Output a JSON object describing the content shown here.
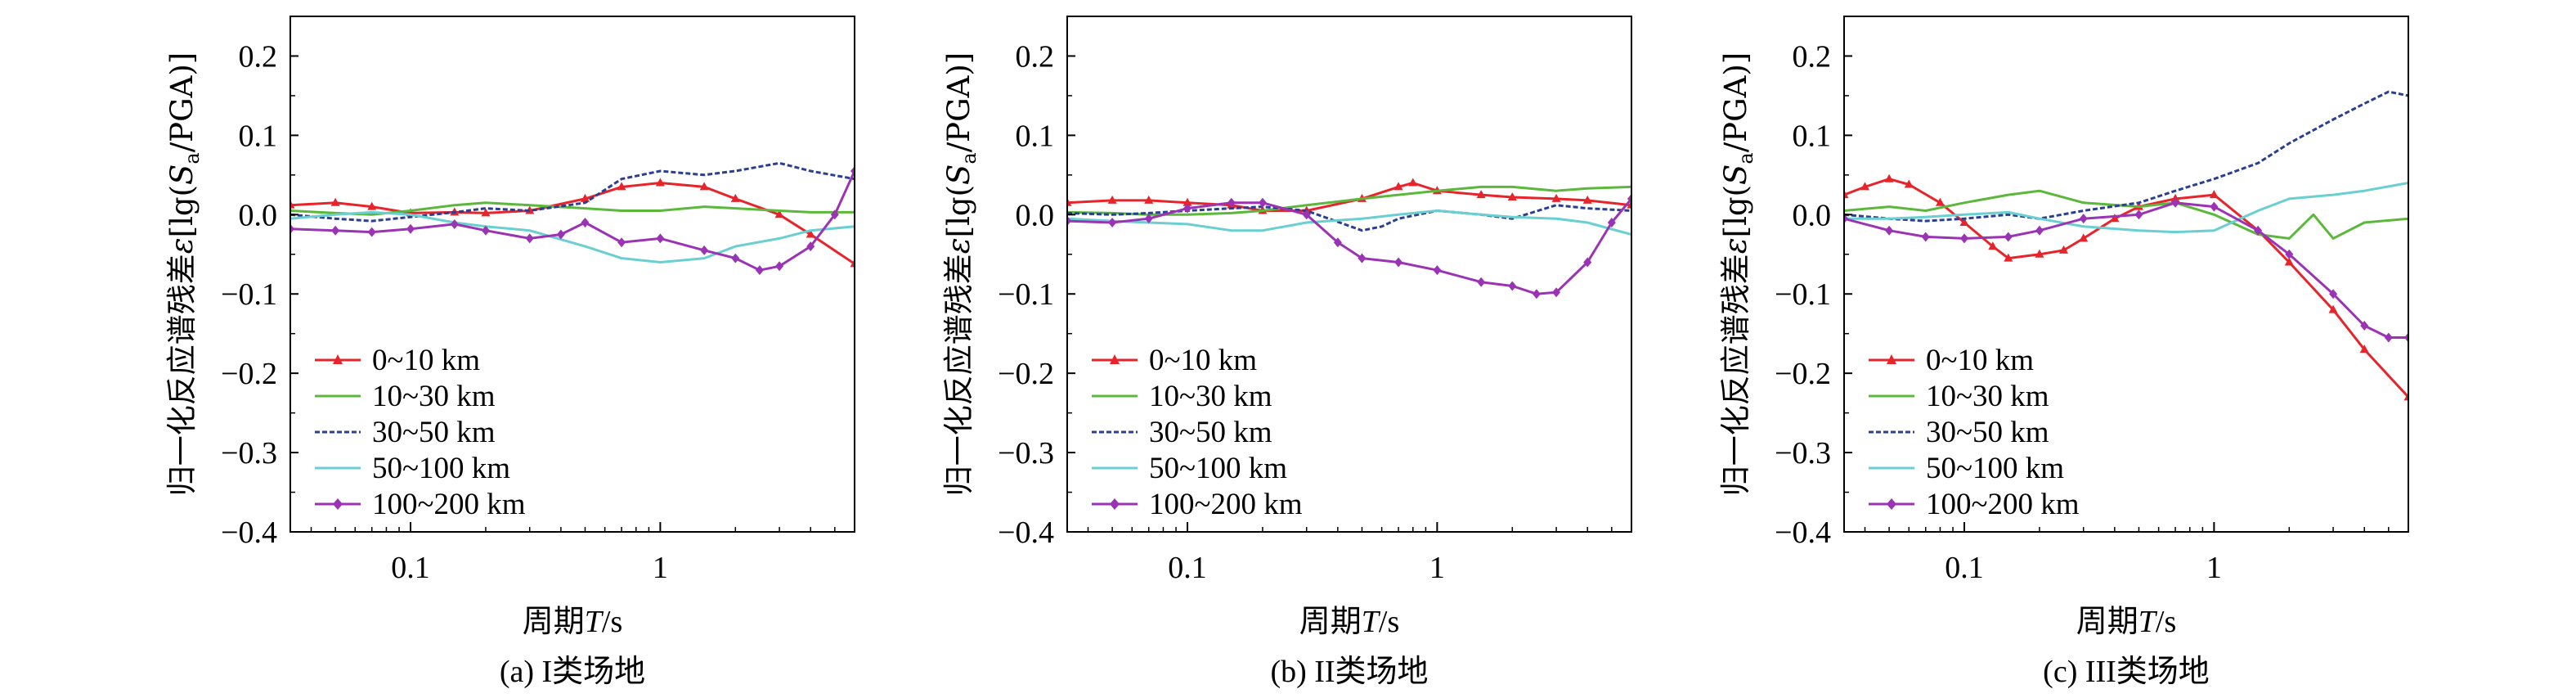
{
  "figure": {
    "x_tick_labels": [
      "0.1",
      "1"
    ],
    "y_tick_labels": [
      "0.2",
      "0.1",
      "0.0",
      "−0.1",
      "−0.2",
      "−0.3",
      "−0.4"
    ],
    "xlabel": "周期T/s",
    "ylabel": "归一化反应谱残差ε[lg(Sa/PGA)]",
    "legend_labels": [
      "0~10 km",
      "10~30 km",
      "30~50 km",
      "50~100 km",
      "100~200 km"
    ],
    "colors": [
      "#e8242b",
      "#5cb83c",
      "#2a3f93",
      "#69cfd0",
      "#9b34b4"
    ]
  },
  "chart_data": [
    {
      "type": "line",
      "title": "(a) I类场地",
      "xlabel": "周期T/s",
      "ylabel": "归一化反应谱残差ε[lg(Sa/PGA)]",
      "x_scale": "log",
      "xlim": [
        0.033,
        6
      ],
      "ylim": [
        -0.4,
        0.25
      ],
      "legend_position": "lower-left",
      "series": [
        {
          "name": "0~10 km",
          "color": "#e8242b",
          "marker": "triangle",
          "points": [
            [
              0.033,
              0.012
            ],
            [
              0.05,
              0.015
            ],
            [
              0.07,
              0.01
            ],
            [
              0.1,
              0.002
            ],
            [
              0.15,
              0.003
            ],
            [
              0.2,
              0.002
            ],
            [
              0.3,
              0.005
            ],
            [
              0.5,
              0.02
            ],
            [
              0.7,
              0.035
            ],
            [
              1,
              0.04
            ],
            [
              1.5,
              0.035
            ],
            [
              2,
              0.02
            ],
            [
              3,
              0.0
            ],
            [
              4,
              -0.025
            ],
            [
              6,
              -0.062
            ]
          ]
        },
        {
          "name": "10~30 km",
          "color": "#5cb83c",
          "marker": "none",
          "points": [
            [
              0.033,
              0.005
            ],
            [
              0.05,
              0.002
            ],
            [
              0.07,
              0.0
            ],
            [
              0.1,
              0.005
            ],
            [
              0.15,
              0.012
            ],
            [
              0.2,
              0.015
            ],
            [
              0.3,
              0.012
            ],
            [
              0.5,
              0.008
            ],
            [
              0.7,
              0.005
            ],
            [
              1,
              0.005
            ],
            [
              1.5,
              0.01
            ],
            [
              2,
              0.008
            ],
            [
              3,
              0.005
            ],
            [
              4,
              0.003
            ],
            [
              6,
              0.003
            ]
          ]
        },
        {
          "name": "30~50 km",
          "color": "#2a3f93",
          "marker": "none",
          "points": [
            [
              0.033,
              0.0
            ],
            [
              0.05,
              -0.005
            ],
            [
              0.07,
              -0.008
            ],
            [
              0.1,
              -0.003
            ],
            [
              0.15,
              0.003
            ],
            [
              0.2,
              0.008
            ],
            [
              0.3,
              0.005
            ],
            [
              0.5,
              0.015
            ],
            [
              0.7,
              0.045
            ],
            [
              1,
              0.055
            ],
            [
              1.5,
              0.05
            ],
            [
              2,
              0.055
            ],
            [
              3,
              0.065
            ],
            [
              4,
              0.055
            ],
            [
              6,
              0.045
            ]
          ]
        },
        {
          "name": "50~100 km",
          "color": "#69cfd0",
          "marker": "none",
          "points": [
            [
              0.033,
              -0.005
            ],
            [
              0.05,
              0.0
            ],
            [
              0.07,
              0.003
            ],
            [
              0.1,
              0.0
            ],
            [
              0.15,
              -0.01
            ],
            [
              0.2,
              -0.015
            ],
            [
              0.3,
              -0.02
            ],
            [
              0.5,
              -0.04
            ],
            [
              0.7,
              -0.055
            ],
            [
              1,
              -0.06
            ],
            [
              1.5,
              -0.055
            ],
            [
              2,
              -0.04
            ],
            [
              3,
              -0.03
            ],
            [
              4,
              -0.02
            ],
            [
              6,
              -0.015
            ]
          ]
        },
        {
          "name": "100~200 km",
          "color": "#9b34b4",
          "marker": "diamond",
          "points": [
            [
              0.033,
              -0.018
            ],
            [
              0.05,
              -0.02
            ],
            [
              0.07,
              -0.022
            ],
            [
              0.1,
              -0.018
            ],
            [
              0.15,
              -0.012
            ],
            [
              0.2,
              -0.02
            ],
            [
              0.3,
              -0.03
            ],
            [
              0.4,
              -0.025
            ],
            [
              0.5,
              -0.01
            ],
            [
              0.7,
              -0.035
            ],
            [
              1,
              -0.03
            ],
            [
              1.5,
              -0.045
            ],
            [
              2,
              -0.055
            ],
            [
              2.5,
              -0.07
            ],
            [
              3,
              -0.065
            ],
            [
              4,
              -0.04
            ],
            [
              5,
              0.0
            ],
            [
              6,
              0.055
            ]
          ]
        }
      ]
    },
    {
      "type": "line",
      "title": "(b) II类场地",
      "xlabel": "周期T/s",
      "ylabel": "归一化反应谱残差ε[lg(Sa/PGA)]",
      "x_scale": "log",
      "xlim": [
        0.033,
        6
      ],
      "ylim": [
        -0.4,
        0.25
      ],
      "legend_position": "lower-left",
      "series": [
        {
          "name": "0~10 km",
          "color": "#e8242b",
          "marker": "triangle",
          "points": [
            [
              0.033,
              0.015
            ],
            [
              0.05,
              0.018
            ],
            [
              0.07,
              0.018
            ],
            [
              0.1,
              0.015
            ],
            [
              0.15,
              0.012
            ],
            [
              0.2,
              0.005
            ],
            [
              0.3,
              0.005
            ],
            [
              0.5,
              0.02
            ],
            [
              0.7,
              0.035
            ],
            [
              0.8,
              0.04
            ],
            [
              1,
              0.03
            ],
            [
              1.5,
              0.025
            ],
            [
              2,
              0.022
            ],
            [
              3,
              0.02
            ],
            [
              4,
              0.018
            ],
            [
              6,
              0.012
            ]
          ]
        },
        {
          "name": "10~30 km",
          "color": "#5cb83c",
          "marker": "none",
          "points": [
            [
              0.033,
              0.003
            ],
            [
              0.05,
              0.002
            ],
            [
              0.07,
              0.0
            ],
            [
              0.1,
              0.0
            ],
            [
              0.15,
              0.002
            ],
            [
              0.2,
              0.005
            ],
            [
              0.3,
              0.012
            ],
            [
              0.5,
              0.02
            ],
            [
              0.7,
              0.025
            ],
            [
              1,
              0.03
            ],
            [
              1.5,
              0.035
            ],
            [
              2,
              0.035
            ],
            [
              3,
              0.03
            ],
            [
              4,
              0.033
            ],
            [
              6,
              0.035
            ]
          ]
        },
        {
          "name": "30~50 km",
          "color": "#2a3f93",
          "marker": "none",
          "points": [
            [
              0.033,
              0.002
            ],
            [
              0.05,
              0.0
            ],
            [
              0.07,
              0.002
            ],
            [
              0.1,
              0.005
            ],
            [
              0.15,
              0.008
            ],
            [
              0.2,
              0.01
            ],
            [
              0.3,
              0.005
            ],
            [
              0.5,
              -0.02
            ],
            [
              0.6,
              -0.015
            ],
            [
              0.7,
              -0.005
            ],
            [
              1,
              0.005
            ],
            [
              1.5,
              0.0
            ],
            [
              2,
              -0.005
            ],
            [
              3,
              0.012
            ],
            [
              4,
              0.008
            ],
            [
              6,
              0.005
            ]
          ]
        },
        {
          "name": "50~100 km",
          "color": "#69cfd0",
          "marker": "none",
          "points": [
            [
              0.033,
              -0.005
            ],
            [
              0.05,
              -0.008
            ],
            [
              0.07,
              -0.01
            ],
            [
              0.1,
              -0.012
            ],
            [
              0.15,
              -0.02
            ],
            [
              0.2,
              -0.02
            ],
            [
              0.3,
              -0.01
            ],
            [
              0.5,
              -0.005
            ],
            [
              0.7,
              0.0
            ],
            [
              1,
              0.005
            ],
            [
              1.5,
              0.0
            ],
            [
              2,
              -0.003
            ],
            [
              3,
              -0.005
            ],
            [
              4,
              -0.01
            ],
            [
              6,
              -0.025
            ]
          ]
        },
        {
          "name": "100~200 km",
          "color": "#9b34b4",
          "marker": "diamond",
          "points": [
            [
              0.033,
              -0.008
            ],
            [
              0.05,
              -0.01
            ],
            [
              0.07,
              -0.005
            ],
            [
              0.1,
              0.008
            ],
            [
              0.15,
              0.015
            ],
            [
              0.2,
              0.015
            ],
            [
              0.3,
              0.0
            ],
            [
              0.4,
              -0.035
            ],
            [
              0.5,
              -0.055
            ],
            [
              0.7,
              -0.06
            ],
            [
              1,
              -0.07
            ],
            [
              1.5,
              -0.085
            ],
            [
              2,
              -0.09
            ],
            [
              2.5,
              -0.1
            ],
            [
              3,
              -0.098
            ],
            [
              4,
              -0.06
            ],
            [
              5,
              -0.01
            ],
            [
              6,
              0.02
            ]
          ]
        }
      ]
    },
    {
      "type": "line",
      "title": "(c) III类场地",
      "xlabel": "周期T/s",
      "ylabel": "归一化反应谱残差ε[lg(Sa/PGA)]",
      "x_scale": "log",
      "xlim": [
        0.033,
        6
      ],
      "ylim": [
        -0.4,
        0.25
      ],
      "legend_position": "lower-left",
      "series": [
        {
          "name": "0~10 km",
          "color": "#e8242b",
          "marker": "triangle",
          "points": [
            [
              0.033,
              0.025
            ],
            [
              0.04,
              0.035
            ],
            [
              0.05,
              0.045
            ],
            [
              0.06,
              0.038
            ],
            [
              0.08,
              0.015
            ],
            [
              0.1,
              -0.01
            ],
            [
              0.13,
              -0.04
            ],
            [
              0.15,
              -0.055
            ],
            [
              0.2,
              -0.05
            ],
            [
              0.25,
              -0.045
            ],
            [
              0.3,
              -0.03
            ],
            [
              0.4,
              -0.005
            ],
            [
              0.5,
              0.01
            ],
            [
              0.7,
              0.02
            ],
            [
              1,
              0.025
            ],
            [
              1.5,
              -0.02
            ],
            [
              2,
              -0.06
            ],
            [
              3,
              -0.12
            ],
            [
              4,
              -0.17
            ],
            [
              6,
              -0.23
            ]
          ]
        },
        {
          "name": "10~30 km",
          "color": "#5cb83c",
          "marker": "none",
          "points": [
            [
              0.033,
              0.005
            ],
            [
              0.05,
              0.01
            ],
            [
              0.07,
              0.005
            ],
            [
              0.1,
              0.015
            ],
            [
              0.15,
              0.025
            ],
            [
              0.2,
              0.03
            ],
            [
              0.3,
              0.015
            ],
            [
              0.5,
              0.01
            ],
            [
              0.7,
              0.015
            ],
            [
              1,
              0.0
            ],
            [
              1.5,
              -0.025
            ],
            [
              2,
              -0.03
            ],
            [
              2.5,
              0.0
            ],
            [
              3,
              -0.03
            ],
            [
              4,
              -0.01
            ],
            [
              6,
              -0.005
            ]
          ]
        },
        {
          "name": "30~50 km",
          "color": "#2a3f93",
          "marker": "none",
          "points": [
            [
              0.033,
              0.0
            ],
            [
              0.05,
              -0.005
            ],
            [
              0.07,
              -0.008
            ],
            [
              0.1,
              -0.005
            ],
            [
              0.15,
              0.0
            ],
            [
              0.2,
              -0.005
            ],
            [
              0.3,
              0.005
            ],
            [
              0.5,
              0.015
            ],
            [
              0.7,
              0.03
            ],
            [
              1,
              0.045
            ],
            [
              1.5,
              0.065
            ],
            [
              2,
              0.09
            ],
            [
              3,
              0.12
            ],
            [
              4,
              0.14
            ],
            [
              5,
              0.155
            ],
            [
              6,
              0.15
            ]
          ]
        },
        {
          "name": "50~100 km",
          "color": "#69cfd0",
          "marker": "none",
          "points": [
            [
              0.033,
              -0.005
            ],
            [
              0.05,
              -0.005
            ],
            [
              0.07,
              -0.003
            ],
            [
              0.1,
              0.0
            ],
            [
              0.15,
              0.003
            ],
            [
              0.2,
              -0.005
            ],
            [
              0.3,
              -0.015
            ],
            [
              0.5,
              -0.02
            ],
            [
              0.7,
              -0.022
            ],
            [
              1,
              -0.02
            ],
            [
              1.5,
              0.005
            ],
            [
              2,
              0.02
            ],
            [
              3,
              0.025
            ],
            [
              4,
              0.03
            ],
            [
              6,
              0.04
            ]
          ]
        },
        {
          "name": "100~200 km",
          "color": "#9b34b4",
          "marker": "diamond",
          "points": [
            [
              0.033,
              -0.005
            ],
            [
              0.05,
              -0.02
            ],
            [
              0.07,
              -0.028
            ],
            [
              0.1,
              -0.03
            ],
            [
              0.15,
              -0.028
            ],
            [
              0.2,
              -0.02
            ],
            [
              0.3,
              -0.005
            ],
            [
              0.5,
              0.0
            ],
            [
              0.7,
              0.015
            ],
            [
              1,
              0.01
            ],
            [
              1.5,
              -0.02
            ],
            [
              2,
              -0.05
            ],
            [
              3,
              -0.1
            ],
            [
              4,
              -0.14
            ],
            [
              5,
              -0.155
            ],
            [
              6,
              -0.155
            ]
          ]
        }
      ]
    }
  ]
}
